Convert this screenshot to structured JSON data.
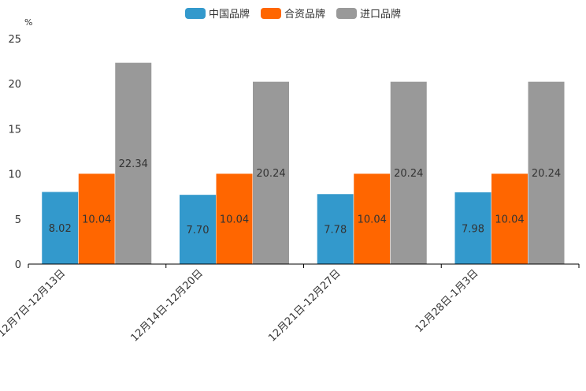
{
  "chart_data": {
    "type": "bar",
    "unit": "%",
    "categories": [
      "12月7日-12月13日",
      "12月14日-12月20日",
      "12月21日-12月27日",
      "12月28日-1月3日"
    ],
    "series": [
      {
        "name": "中国品牌",
        "color": "#3399cc",
        "values": [
          8.02,
          7.7,
          7.78,
          7.98
        ],
        "labels": [
          "8.02",
          "7.70",
          "7.78",
          "7.98"
        ]
      },
      {
        "name": "合资品牌",
        "color": "#ff6600",
        "values": [
          10.04,
          10.04,
          10.04,
          10.04
        ],
        "labels": [
          "10.04",
          "10.04",
          "10.04",
          "10.04"
        ]
      },
      {
        "name": "进口品牌",
        "color": "#999999",
        "values": [
          22.34,
          20.24,
          20.24,
          20.24
        ],
        "labels": [
          "22.34",
          "20.24",
          "20.24",
          "20.24"
        ]
      }
    ],
    "ylim": [
      0,
      25
    ],
    "yticks": [
      "0",
      "5",
      "10",
      "15",
      "20",
      "25"
    ],
    "legend": "top-center",
    "grid": false
  }
}
